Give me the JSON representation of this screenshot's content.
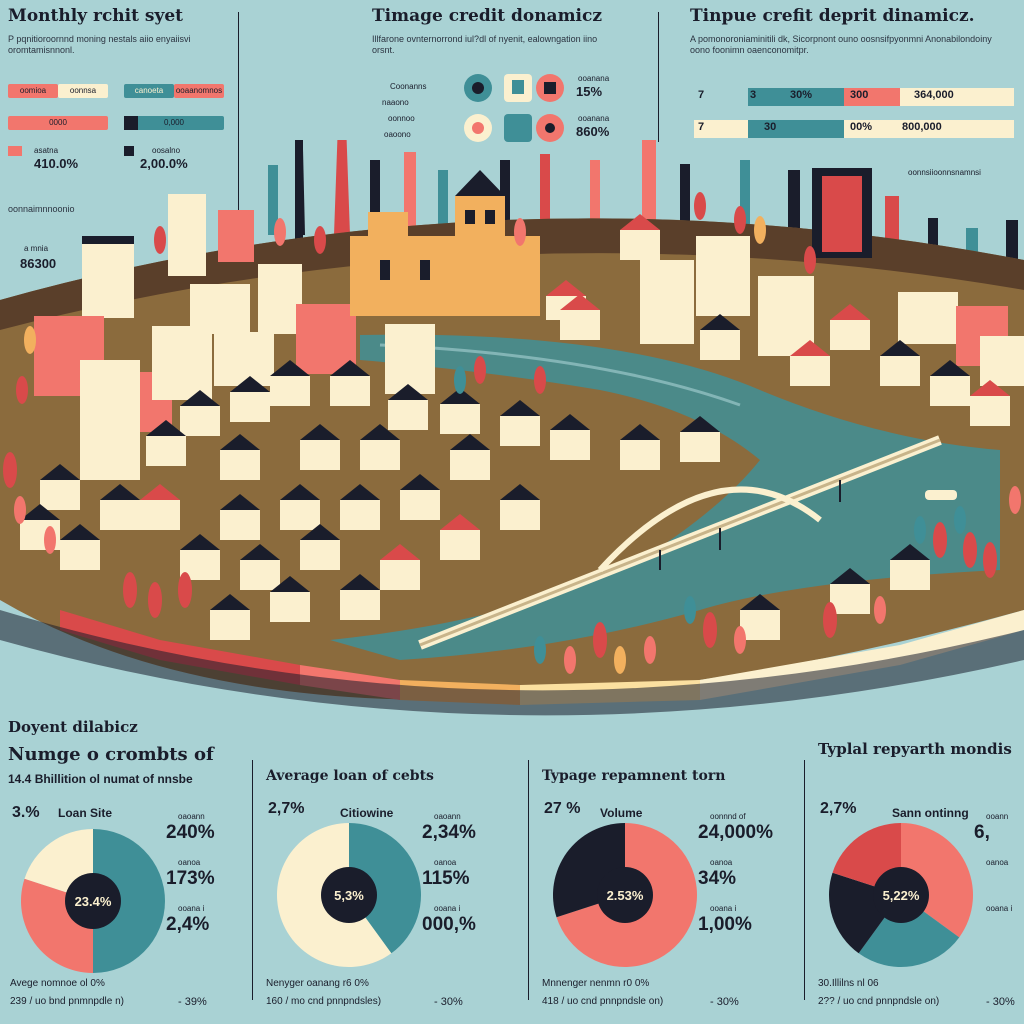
{
  "colors": {
    "background": "#a9d2d4",
    "dark": "#1a1d2b",
    "salmon": "#f2766d",
    "cream": "#fbf0cf",
    "teal": "#3f8f97",
    "red": "#d94a4a",
    "orange": "#f2b05e"
  },
  "header": {
    "left_title": "Monthly rchit syet",
    "left_desc": "P pqnitioroornnd moning nestals aiio enyaiisvi oromtamisnnonl.",
    "center_title": "Timage credit donamicz",
    "center_desc": "Illfarone ovnternorrond iul?dl of nyenit, ealowngation iino orsnt.",
    "right_title": "Tinpue crefit deprit dinamicz.",
    "right_desc": "A pomonoroniaminitili dk, Sicorpnont ouno oosnsifpyonmni Anonabilondoiny oono foonimn oaenconomitpr."
  },
  "left_panel": {
    "pills": [
      {
        "label": "oomioa",
        "tone": "salmon"
      },
      {
        "label": "oonnsa",
        "tone": "cream"
      },
      {
        "label": "canoeta",
        "tone": "teal"
      },
      {
        "label": "ooaanomnos",
        "tone": "salmon"
      },
      {
        "label": "0000",
        "tone": "salmon"
      },
      {
        "label": "0,000",
        "tone": "teal"
      }
    ],
    "stats": [
      {
        "caption": "asatna",
        "value": "410.0%"
      },
      {
        "caption": "oosalno",
        "value": "2,00.0%"
      }
    ],
    "side_caption": "a mnia",
    "side_value": "86300",
    "footnote": "oonnaimnnoonio"
  },
  "center_panel": {
    "items": [
      {
        "caption": "ooanana",
        "value": "15%"
      },
      {
        "caption": "ooanana",
        "value": "860%"
      }
    ],
    "row_labels": [
      "Coonanns",
      "naaono",
      "oonnoo",
      "oaoono"
    ]
  },
  "right_panel": {
    "table_rows": [
      {
        "a": "7",
        "b": "3",
        "c": "30%",
        "d": "300",
        "e": "364,000"
      },
      {
        "a": "7",
        "b": "30",
        "c": "00%",
        "d": "",
        "e": "800,000"
      }
    ],
    "note": "oonnsiioonnsnamnsi"
  },
  "section": {
    "title": "Doyent dilabicz",
    "subtitle": "Numge o crombts of",
    "line": "14.4 Bhillition ol numat of nnsbe"
  },
  "chart_data": [
    {
      "type": "pie",
      "title": "Numge o crombts of",
      "header_stat": "3.%",
      "label": "Loan Site",
      "center_label": "23.4%",
      "slices": [
        {
          "name": "A",
          "value": 50,
          "color": "#3f8f97"
        },
        {
          "name": "B",
          "value": 30,
          "color": "#f2766d"
        },
        {
          "name": "C",
          "value": 20,
          "color": "#fbf0cf"
        }
      ],
      "legend": [
        {
          "caption": "oaoann",
          "value": "240%"
        },
        {
          "caption": "oanoa",
          "value": "173%"
        },
        {
          "caption": "ooana i",
          "value": "2,4%"
        }
      ],
      "foot_caption": "Avege nomnoe ol 0%",
      "foot_line": "239 / uo bnd pnmnpdle n)",
      "foot_value": "- 39%"
    },
    {
      "type": "pie",
      "title": "Average loan of cebts",
      "header_stat": "2,7%",
      "label": "Citiowine",
      "center_label": "5,3%",
      "slices": [
        {
          "name": "A",
          "value": 40,
          "color": "#3f8f97"
        },
        {
          "name": "B",
          "value": 60,
          "color": "#fbf0cf"
        }
      ],
      "legend": [
        {
          "caption": "oaoann",
          "value": "2,34%"
        },
        {
          "caption": "oanoa",
          "value": "115%"
        },
        {
          "caption": "ooana i",
          "value": "000,%"
        }
      ],
      "foot_caption": "Nenyger oanang r6 0%",
      "foot_line": "160 / mo cnd pnnpndsles)",
      "foot_value": "- 30%"
    },
    {
      "type": "pie",
      "title": "Typage repamnent torn",
      "header_stat": "27 %",
      "label": "Volume",
      "center_label": "2.53%",
      "slices": [
        {
          "name": "A",
          "value": 70,
          "color": "#f2766d"
        },
        {
          "name": "B",
          "value": 30,
          "color": "#1a1d2b"
        }
      ],
      "legend": [
        {
          "caption": "oonnnd of",
          "value": "24,000%"
        },
        {
          "caption": "oanoa",
          "value": "34%"
        },
        {
          "caption": "ooana i",
          "value": "1,00%"
        }
      ],
      "foot_caption": "Mnnenger nenmn r0 0%",
      "foot_line": "418 / uo cnd pnnpndsle on)",
      "foot_value": "- 30%"
    },
    {
      "type": "pie",
      "title": "Typlal repyarth mondis",
      "header_stat": "2,7%",
      "label": "Sann ontinng",
      "center_label": "5,22%",
      "slices": [
        {
          "name": "A",
          "value": 35,
          "color": "#f2766d"
        },
        {
          "name": "B",
          "value": 25,
          "color": "#3f8f97"
        },
        {
          "name": "C",
          "value": 20,
          "color": "#1a1d2b"
        },
        {
          "name": "D",
          "value": 20,
          "color": "#d94a4a"
        }
      ],
      "legend": [
        {
          "caption": "ooann",
          "value": "6,"
        },
        {
          "caption": "oanoa",
          "value": ""
        },
        {
          "caption": "ooana i",
          "value": ""
        }
      ],
      "foot_caption": "30.Illilns nl 06",
      "foot_line": "2?? / uo cnd pnnpndsle on)",
      "foot_value": "- 30%"
    }
  ]
}
